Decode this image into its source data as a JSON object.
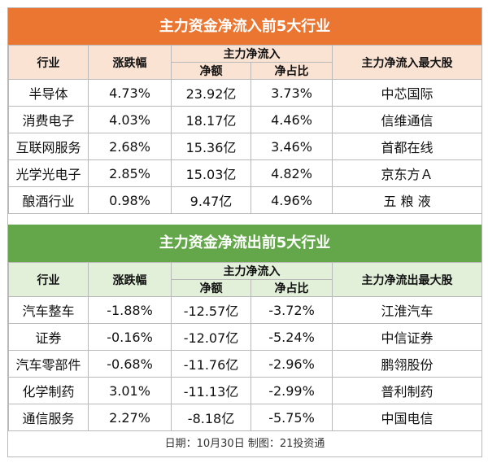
{
  "inflow": {
    "title": "主力资金净流入前5大行业",
    "headers": {
      "industry": "行业",
      "change": "涨跌幅",
      "net_group": "主力净流入",
      "net_amount": "净额",
      "net_ratio": "净占比",
      "top_stock": "主力净流入最大股"
    },
    "rows": [
      {
        "industry": "半导体",
        "change": "4.73%",
        "amount": "23.92亿",
        "ratio": "3.73%",
        "stock": "中芯国际"
      },
      {
        "industry": "消费电子",
        "change": "4.03%",
        "amount": "18.17亿",
        "ratio": "4.46%",
        "stock": "信维通信"
      },
      {
        "industry": "互联网服务",
        "change": "2.68%",
        "amount": "15.36亿",
        "ratio": "3.46%",
        "stock": "首都在线"
      },
      {
        "industry": "光学光电子",
        "change": "2.85%",
        "amount": "15.03亿",
        "ratio": "4.82%",
        "stock": "京东方Ａ"
      },
      {
        "industry": "酿酒行业",
        "change": "0.98%",
        "amount": "9.47亿",
        "ratio": "4.96%",
        "stock": "五 粮 液"
      }
    ]
  },
  "outflow": {
    "title": "主力资金净流出前5大行业",
    "headers": {
      "industry": "行业",
      "change": "涨跌幅",
      "net_group": "主力净流入",
      "net_amount": "净额",
      "net_ratio": "净占比",
      "top_stock": "主力净流出最大股"
    },
    "rows": [
      {
        "industry": "汽车整车",
        "change": "-1.88%",
        "amount": "-12.57亿",
        "ratio": "-3.72%",
        "stock": "江淮汽车"
      },
      {
        "industry": "证券",
        "change": "-0.16%",
        "amount": "-12.07亿",
        "ratio": "-5.24%",
        "stock": "中信证券"
      },
      {
        "industry": "汽车零部件",
        "change": "-0.68%",
        "amount": "-11.76亿",
        "ratio": "-2.96%",
        "stock": "鹏翎股份"
      },
      {
        "industry": "化学制药",
        "change": "3.01%",
        "amount": "-11.13亿",
        "ratio": "-2.99%",
        "stock": "普利制药"
      },
      {
        "industry": "通信服务",
        "change": "2.27%",
        "amount": "-8.18亿",
        "ratio": "-5.75%",
        "stock": "中国电信"
      }
    ]
  },
  "footer": "日期：10月30日 制图：21投资通",
  "colors": {
    "inflow_accent": "#ea7632",
    "inflow_header_bg": "#fbe3d3",
    "outflow_accent": "#64a74a",
    "outflow_header_bg": "#e2efd9",
    "border": "#b9b9b9"
  }
}
